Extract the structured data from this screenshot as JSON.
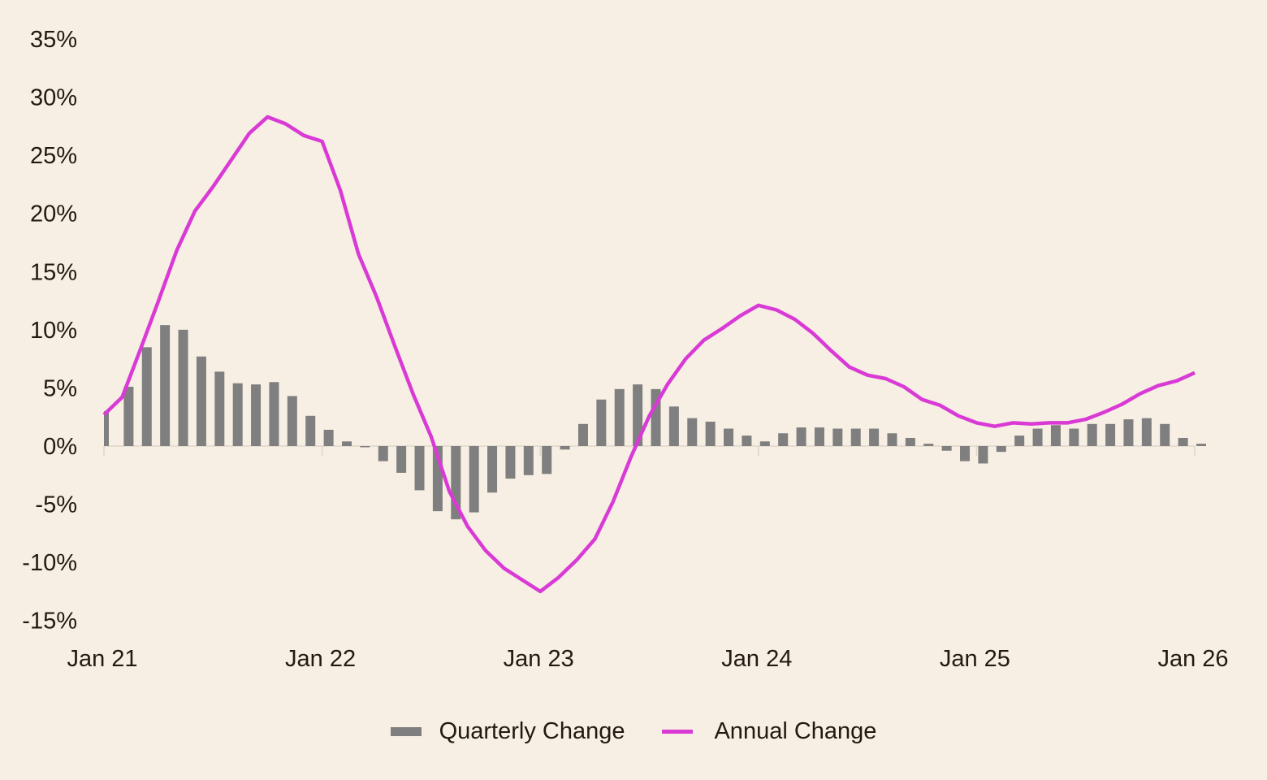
{
  "chart_data": {
    "type": "bar+line",
    "title": "",
    "xlabel": "",
    "ylabel": "",
    "ylim": [
      -15,
      35
    ],
    "yticks": [
      35,
      30,
      25,
      20,
      15,
      10,
      5,
      0,
      -5,
      -10,
      -15
    ],
    "ytick_labels": [
      "35%",
      "30%",
      "25%",
      "20%",
      "15%",
      "10%",
      "5%",
      "0%",
      "-5%",
      "-10%",
      "-15%"
    ],
    "xtick_labels": [
      "Jan 21",
      "Jan 22",
      "Jan 23",
      "Jan 24",
      "Jan 25",
      "Jan 26"
    ],
    "x_start": "Jan 21",
    "x_end": "Jan 26",
    "frequency": "monthly",
    "grid": false,
    "legend_position": "bottom-center",
    "colors": {
      "bar": "#7f7f7f",
      "line": "#d93ad6",
      "axis": "#ddd5c8",
      "background": "#f7efe3"
    },
    "series": [
      {
        "name": "Quarterly Change",
        "kind": "bar",
        "values": [
          3.0,
          5.1,
          8.5,
          10.4,
          10.0,
          7.7,
          6.4,
          5.4,
          5.3,
          5.5,
          4.3,
          2.6,
          1.4,
          0.4,
          -0.1,
          -1.3,
          -2.3,
          -3.8,
          -5.6,
          -6.3,
          -5.7,
          -4.0,
          -2.8,
          -2.5,
          -2.4,
          -0.3,
          1.9,
          4.0,
          4.9,
          5.3,
          4.9,
          3.4,
          2.4,
          2.1,
          1.5,
          0.9,
          0.4,
          1.1,
          1.6,
          1.6,
          1.5,
          1.5,
          1.5,
          1.1,
          0.7,
          0.2,
          -0.4,
          -1.3,
          -1.5,
          -0.5,
          0.9,
          1.5,
          1.8,
          1.5,
          1.9,
          1.9,
          2.3,
          2.4,
          1.9,
          0.7,
          0.2
        ]
      },
      {
        "name": "Annual Change",
        "kind": "line",
        "values": [
          2.7,
          4.2,
          8.3,
          12.5,
          16.8,
          20.2,
          22.3,
          24.6,
          26.9,
          28.3,
          27.7,
          26.7,
          26.2,
          22.0,
          16.5,
          12.8,
          8.6,
          4.5,
          0.8,
          -3.9,
          -6.9,
          -9.0,
          -10.5,
          -11.5,
          -12.5,
          -11.3,
          -9.8,
          -8.0,
          -4.8,
          -0.9,
          2.6,
          5.3,
          7.5,
          9.1,
          10.1,
          11.2,
          12.1,
          11.7,
          10.9,
          9.7,
          8.2,
          6.8,
          6.1,
          5.8,
          5.1,
          4.0,
          3.5,
          2.6,
          2.0,
          1.7,
          2.0,
          1.9,
          2.0,
          2.0,
          2.3,
          2.9,
          3.6,
          4.5,
          5.2,
          5.6,
          6.3
        ]
      }
    ]
  },
  "legend": {
    "items": [
      {
        "label": "Quarterly Change"
      },
      {
        "label": "Annual Change"
      }
    ]
  }
}
